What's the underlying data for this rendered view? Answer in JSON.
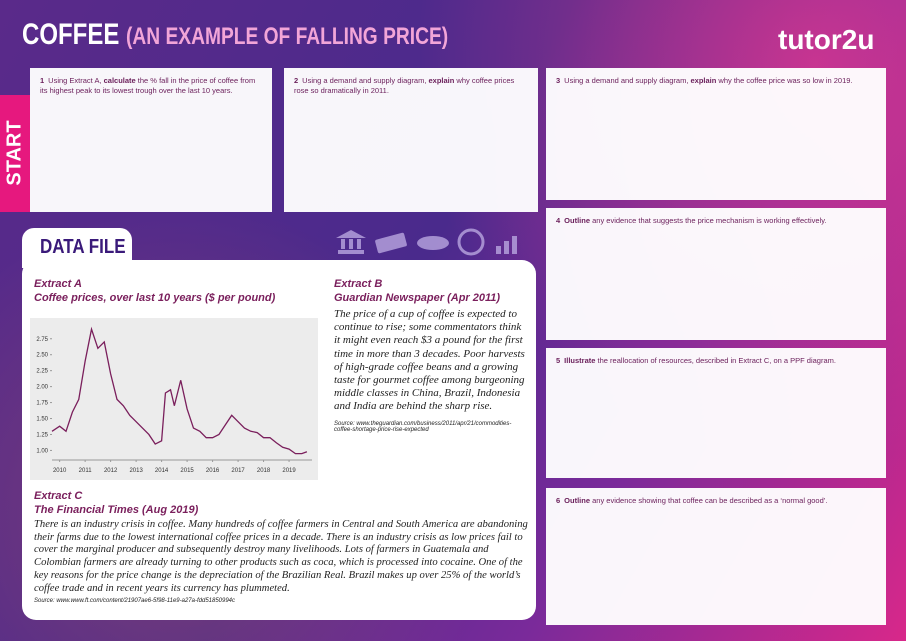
{
  "header": {
    "title": "COFFEE",
    "subtitle": "(AN EXAMPLE OF FALLING PRICE)",
    "logo": "tutor2u"
  },
  "start_label": "START",
  "questions": [
    {
      "number": "1",
      "parts": [
        "Using Extract A, ",
        "calculate",
        " the % fall in the price of coffee from its highest peak to its lowest trough over the last 10 years."
      ]
    },
    {
      "number": "2",
      "parts": [
        "Using a demand and supply diagram, ",
        "explain",
        " why coffee prices rose so dramatically in 2011."
      ]
    },
    {
      "number": "3",
      "parts": [
        "Using a demand and supply diagram, ",
        "explain",
        " why the coffee price was so low in 2019."
      ]
    },
    {
      "number": "4",
      "parts": [
        "",
        "Outline",
        " any evidence that suggests the price mechanism is working effectively."
      ]
    },
    {
      "number": "5",
      "parts": [
        "",
        "Illustrate",
        " the reallocation of resources, described in Extract C, on a PPF diagram."
      ]
    },
    {
      "number": "6",
      "parts": [
        "",
        "Outline",
        " any evidence showing that coffee can be described as a ‘normal good’."
      ]
    }
  ],
  "data_file": "DATA FILE",
  "extract_a": {
    "label": "Extract A",
    "heading": "Coffee prices, over last 10 years ($ per pound)"
  },
  "extract_b": {
    "label": "Extract B",
    "heading": "Guardian Newspaper (Apr 2011)",
    "text": "The price of a cup of coffee is expected to continue to rise; some commentators think it might even reach $3 a pound for the first time in more than 3 decades. Poor harvests of high-grade coffee beans and a growing taste for gourmet coffee among burgeoning middle classes in China, Brazil, Indonesia and India are behind the sharp rise.",
    "source": "Source: www.theguardian.com/business/2011/apr/21/commodities-coffee-shortage-price-rise-expected"
  },
  "extract_c": {
    "label": "Extract C",
    "heading": "The Financial Times (Aug 2019)",
    "text": "There is an industry crisis in coffee. Many hundreds of coffee farmers in Central and South America are abandoning their farms due to the lowest international coffee prices in a decade.  There is an industry crisis as low prices fail to cover the marginal producer and subsequently destroy many livelihoods. Lots of farmers in Guatemala and Colombian farmers are already turning to other products such as coca, which is processed into cocaine.  One of the key reasons for the price change is the depreciation of the Brazilian Real.  Brazil makes up over 25% of the world’s coffee trade and in recent years its currency has plummeted.",
    "source": "Source: www.www.ft.com/content/21907ae6-5f98-11e9-a27a-fdd51850994c"
  },
  "chart_data": {
    "type": "line",
    "color": "#7a1f5c",
    "x": [
      2009.7,
      2010.0,
      2010.25,
      2010.5,
      2010.75,
      2011.0,
      2011.25,
      2011.5,
      2011.75,
      2012.0,
      2012.25,
      2012.5,
      2012.75,
      2013.0,
      2013.25,
      2013.5,
      2013.75,
      2014.0,
      2014.15,
      2014.35,
      2014.5,
      2014.75,
      2015.0,
      2015.25,
      2015.5,
      2015.75,
      2016.0,
      2016.25,
      2016.5,
      2016.75,
      2017.0,
      2017.25,
      2017.5,
      2017.75,
      2018.0,
      2018.25,
      2018.5,
      2018.75,
      2019.0,
      2019.25,
      2019.5,
      2019.7
    ],
    "values": [
      1.3,
      1.38,
      1.3,
      1.6,
      1.8,
      2.4,
      2.9,
      2.6,
      2.7,
      2.2,
      1.8,
      1.7,
      1.55,
      1.45,
      1.35,
      1.25,
      1.1,
      1.15,
      1.9,
      1.95,
      1.7,
      2.1,
      1.65,
      1.35,
      1.3,
      1.2,
      1.2,
      1.25,
      1.4,
      1.55,
      1.45,
      1.35,
      1.3,
      1.28,
      1.2,
      1.2,
      1.12,
      1.05,
      1.02,
      0.95,
      0.95,
      0.98
    ],
    "xlim": [
      2009.7,
      2019.9
    ],
    "ylim": [
      0.85,
      2.95
    ],
    "xticks": [
      2010,
      2011,
      2012,
      2013,
      2014,
      2015,
      2016,
      2017,
      2018,
      2019
    ],
    "yticks": [
      {
        "value": 1,
        "label": "1.00"
      },
      1.25,
      {
        "value": 1.5,
        "label": "1.50"
      },
      1.75,
      {
        "value": 2,
        "label": "2.00"
      },
      2.25,
      {
        "value": 2.5,
        "label": "2.50"
      },
      2.75
    ]
  }
}
